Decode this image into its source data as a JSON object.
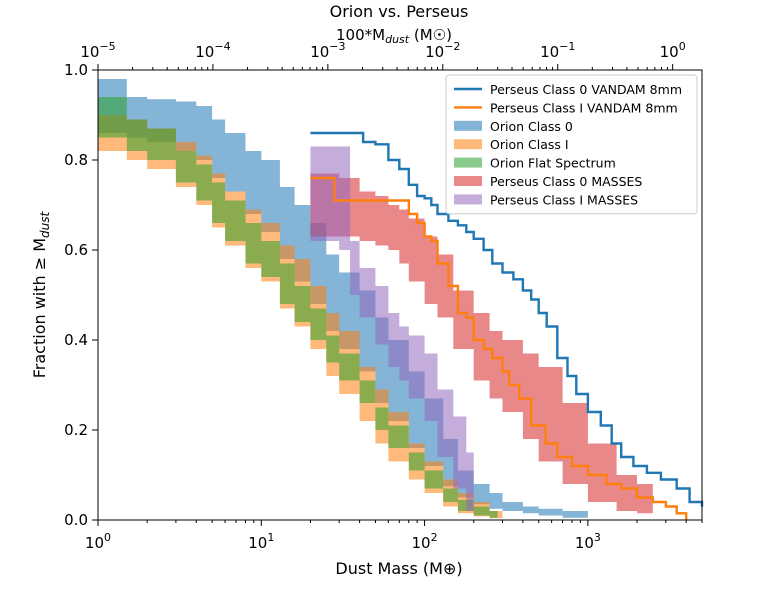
{
  "chart_data": {
    "type": "line",
    "title": "Orion vs. Perseus",
    "xlabel": "Dust Mass (M⊕)",
    "ylabel": "Fraction with ≥ M",
    "ylabel_sub": "dust",
    "top_xlabel": {
      "pre": "100*M",
      "sub": "dust",
      "post": " (M☉)"
    },
    "xscale": "log",
    "xlim": [
      1,
      5000
    ],
    "ylim": [
      0,
      1
    ],
    "x_ticks": [
      {
        "value": 1,
        "base": "10",
        "exp": "0"
      },
      {
        "value": 10,
        "base": "10",
        "exp": "1"
      },
      {
        "value": 100,
        "base": "10",
        "exp": "2"
      },
      {
        "value": 1000,
        "base": "10",
        "exp": "3"
      }
    ],
    "top_x_ticks": [
      {
        "value": 1e-05,
        "base": "10",
        "exp": "−5"
      },
      {
        "value": 0.0001,
        "base": "10",
        "exp": "−4"
      },
      {
        "value": 0.001,
        "base": "10",
        "exp": "−3"
      },
      {
        "value": 0.01,
        "base": "10",
        "exp": "−2"
      },
      {
        "value": 0.1,
        "base": "10",
        "exp": "−1"
      },
      {
        "value": 1,
        "base": "10",
        "exp": "0"
      }
    ],
    "top_xlim": [
      1e-05,
      1.8
    ],
    "y_ticks": [
      {
        "value": 0.0,
        "label": "0.0"
      },
      {
        "value": 0.2,
        "label": "0.2"
      },
      {
        "value": 0.4,
        "label": "0.4"
      },
      {
        "value": 0.6,
        "label": "0.6"
      },
      {
        "value": 0.8,
        "label": "0.8"
      },
      {
        "value": 1.0,
        "label": "1.0"
      }
    ],
    "legend_position": "top-right",
    "series": [
      {
        "name": "Perseus Class 0 VANDAM 8mm",
        "kind": "line",
        "color": "#1f77b4",
        "x": [
          20,
          30,
          42,
          50,
          60,
          70,
          80,
          90,
          100,
          110,
          120,
          140,
          160,
          180,
          200,
          230,
          260,
          300,
          350,
          400,
          450,
          500,
          560,
          650,
          750,
          850,
          1000,
          1200,
          1400,
          1600,
          1900,
          2300,
          2800,
          3500,
          4200,
          5000
        ],
        "y": [
          0.86,
          0.86,
          0.84,
          0.835,
          0.8,
          0.78,
          0.745,
          0.72,
          0.715,
          0.7,
          0.68,
          0.665,
          0.655,
          0.64,
          0.625,
          0.6,
          0.57,
          0.55,
          0.535,
          0.51,
          0.49,
          0.46,
          0.43,
          0.36,
          0.32,
          0.28,
          0.24,
          0.21,
          0.17,
          0.14,
          0.12,
          0.105,
          0.09,
          0.07,
          0.04,
          0.03
        ]
      },
      {
        "name": "Perseus Class I VANDAM 8mm",
        "kind": "line",
        "color": "#ff7f0e",
        "x": [
          20,
          25,
          28,
          40,
          70,
          80,
          90,
          100,
          110,
          120,
          140,
          160,
          180,
          200,
          230,
          260,
          300,
          330,
          380,
          450,
          550,
          650,
          800,
          1000,
          1300,
          1600,
          2000,
          2500,
          3000,
          3500,
          4000
        ],
        "y": [
          0.76,
          0.76,
          0.71,
          0.71,
          0.71,
          0.68,
          0.66,
          0.63,
          0.62,
          0.57,
          0.52,
          0.46,
          0.45,
          0.4,
          0.38,
          0.36,
          0.33,
          0.3,
          0.27,
          0.21,
          0.17,
          0.14,
          0.12,
          0.1,
          0.08,
          0.07,
          0.05,
          0.04,
          0.03,
          0.015,
          0.0
        ]
      },
      {
        "name": "Orion Class 0",
        "kind": "band",
        "color": "#1f77b4",
        "opacity": 0.55,
        "x": [
          1,
          1.5,
          2,
          3,
          4,
          5,
          6,
          8,
          10,
          13,
          16,
          20,
          25,
          30,
          40,
          50,
          60,
          80,
          100,
          130,
          160,
          200,
          250,
          300,
          400,
          500,
          700,
          1000
        ],
        "upper": [
          0.98,
          0.94,
          0.935,
          0.93,
          0.92,
          0.89,
          0.86,
          0.82,
          0.8,
          0.74,
          0.7,
          0.66,
          0.59,
          0.55,
          0.51,
          0.45,
          0.4,
          0.33,
          0.27,
          0.18,
          0.11,
          0.08,
          0.06,
          0.04,
          0.03,
          0.025,
          0.02,
          0.01
        ],
        "lower": [
          0.86,
          0.85,
          0.84,
          0.82,
          0.8,
          0.76,
          0.73,
          0.68,
          0.64,
          0.58,
          0.53,
          0.48,
          0.42,
          0.38,
          0.33,
          0.26,
          0.22,
          0.16,
          0.12,
          0.075,
          0.05,
          0.035,
          0.025,
          0.02,
          0.015,
          0.01,
          0.005,
          0.0
        ]
      },
      {
        "name": "Orion Class I",
        "kind": "band",
        "color": "#ff7f0e",
        "opacity": 0.55,
        "x": [
          1,
          1.5,
          2,
          3,
          4,
          5,
          6,
          8,
          10,
          13,
          16,
          20,
          25,
          30,
          40,
          50,
          60,
          80,
          100,
          130,
          160,
          200,
          250,
          300
        ],
        "upper": [
          0.9,
          0.89,
          0.87,
          0.84,
          0.81,
          0.77,
          0.73,
          0.69,
          0.66,
          0.61,
          0.58,
          0.52,
          0.46,
          0.42,
          0.34,
          0.29,
          0.24,
          0.17,
          0.13,
          0.09,
          0.06,
          0.04,
          0.02,
          0.015
        ],
        "lower": [
          0.82,
          0.8,
          0.78,
          0.74,
          0.7,
          0.65,
          0.61,
          0.56,
          0.53,
          0.47,
          0.43,
          0.38,
          0.32,
          0.28,
          0.22,
          0.17,
          0.13,
          0.09,
          0.06,
          0.03,
          0.015,
          0.008,
          0.004,
          0.0
        ]
      },
      {
        "name": "Orion Flat Spectrum",
        "kind": "band",
        "color": "#2ca02c",
        "opacity": 0.55,
        "x": [
          1,
          1.5,
          2,
          3,
          4,
          5,
          6,
          8,
          10,
          13,
          16,
          20,
          25,
          30,
          40,
          50,
          60,
          80,
          100,
          130,
          160,
          200,
          250,
          280
        ],
        "upper": [
          0.94,
          0.89,
          0.87,
          0.82,
          0.79,
          0.75,
          0.71,
          0.66,
          0.62,
          0.57,
          0.52,
          0.47,
          0.41,
          0.37,
          0.31,
          0.25,
          0.21,
          0.15,
          0.11,
          0.07,
          0.045,
          0.03,
          0.02,
          0.015
        ],
        "lower": [
          0.85,
          0.82,
          0.8,
          0.75,
          0.71,
          0.66,
          0.62,
          0.57,
          0.54,
          0.48,
          0.44,
          0.4,
          0.35,
          0.31,
          0.26,
          0.2,
          0.16,
          0.11,
          0.07,
          0.04,
          0.02,
          0.01,
          0.005,
          0.0
        ]
      },
      {
        "name": "Perseus Class 0 MASSES",
        "kind": "band",
        "color": "#d62728",
        "opacity": 0.55,
        "x": [
          20,
          30,
          40,
          50,
          60,
          70,
          80,
          100,
          120,
          150,
          200,
          250,
          300,
          400,
          500,
          700,
          1000,
          1500,
          2000,
          2500
        ],
        "upper": [
          0.77,
          0.76,
          0.73,
          0.72,
          0.7,
          0.69,
          0.67,
          0.63,
          0.59,
          0.51,
          0.46,
          0.42,
          0.4,
          0.37,
          0.34,
          0.26,
          0.17,
          0.1,
          0.08,
          0.07
        ],
        "lower": [
          0.63,
          0.63,
          0.62,
          0.61,
          0.6,
          0.57,
          0.53,
          0.48,
          0.45,
          0.38,
          0.31,
          0.27,
          0.24,
          0.18,
          0.13,
          0.08,
          0.04,
          0.02,
          0.015,
          0.01
        ]
      },
      {
        "name": "Perseus Class I MASSES",
        "kind": "band",
        "color": "#9467bd",
        "opacity": 0.55,
        "x": [
          20,
          25,
          30,
          35,
          40,
          50,
          60,
          70,
          80,
          100,
          120,
          150,
          180,
          200
        ],
        "upper": [
          0.83,
          0.83,
          0.83,
          0.62,
          0.56,
          0.52,
          0.46,
          0.43,
          0.41,
          0.37,
          0.29,
          0.23,
          0.15,
          0.1
        ],
        "lower": [
          0.62,
          0.62,
          0.6,
          0.5,
          0.45,
          0.39,
          0.34,
          0.31,
          0.27,
          0.22,
          0.14,
          0.07,
          0.02,
          0.0
        ]
      }
    ]
  }
}
